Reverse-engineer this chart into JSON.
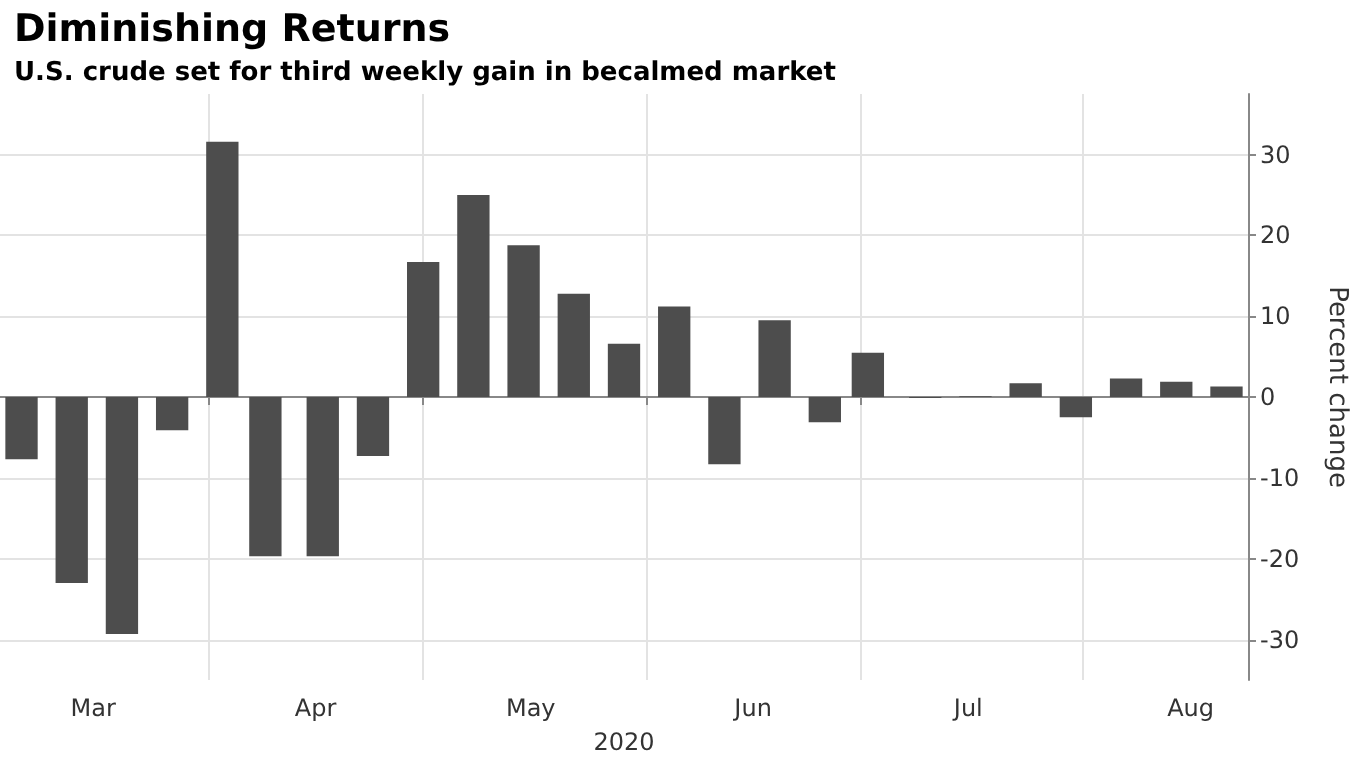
{
  "chart_data": {
    "type": "bar",
    "title": "Diminishing Returns",
    "subtitle": "U.S. crude set for third weekly gain in becalmed market",
    "xlabel": "2020",
    "ylabel": "Percent change",
    "x": [
      "2020-03-06",
      "2020-03-13",
      "2020-03-20",
      "2020-03-27",
      "2020-04-03",
      "2020-04-09",
      "2020-04-17",
      "2020-04-24",
      "2020-05-01",
      "2020-05-08",
      "2020-05-15",
      "2020-05-22",
      "2020-05-29",
      "2020-06-05",
      "2020-06-12",
      "2020-06-19",
      "2020-06-26",
      "2020-07-02",
      "2020-07-10",
      "2020-07-17",
      "2020-07-24",
      "2020-07-31",
      "2020-08-07",
      "2020-08-14",
      "2020-08-21"
    ],
    "values": [
      -7.7,
      -23,
      -29.3,
      -4.1,
      31.6,
      -19.7,
      -19.7,
      -7.3,
      16.7,
      25,
      18.8,
      12.8,
      6.6,
      11.2,
      -8.3,
      9.5,
      -3.1,
      5.5,
      -0.1,
      0.1,
      1.7,
      -2.5,
      2.3,
      1.9,
      1.3
    ],
    "color": "#4d4d4d",
    "xlim": [
      "2020-03-03",
      "2020-08-24"
    ],
    "xticks": [
      {
        "value": "2020-03-16",
        "label": "Mar"
      },
      {
        "value": "2020-04-01",
        "label": null
      },
      {
        "value": "2020-04-16",
        "label": "Apr"
      },
      {
        "value": "2020-05-01",
        "label": null
      },
      {
        "value": "2020-05-16",
        "label": "May"
      },
      {
        "value": "2020-06-01",
        "label": null
      },
      {
        "value": "2020-06-16",
        "label": "Jun"
      },
      {
        "value": "2020-07-01",
        "label": null
      },
      {
        "value": "2020-07-16",
        "label": "Jul"
      },
      {
        "value": "2020-08-01",
        "label": null
      },
      {
        "value": "2020-08-16",
        "label": "Aug"
      }
    ],
    "ylim": [
      -35,
      37.5
    ],
    "yticks": [
      -30,
      -20,
      -10,
      0,
      10,
      20,
      30
    ],
    "grid": true
  }
}
